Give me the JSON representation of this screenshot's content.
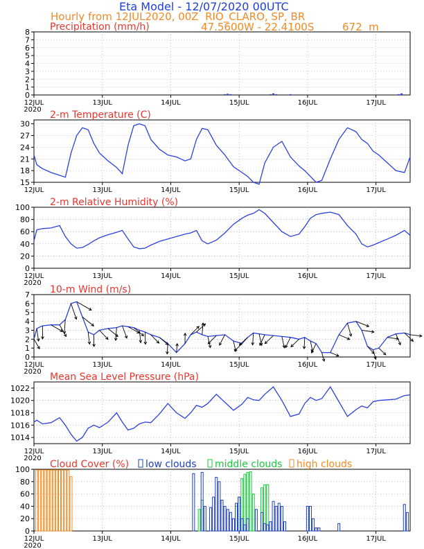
{
  "header": {
    "title": "Eta Model - 12/07/2020 00UTC",
    "subtitle": "Hourly from 12JUL2020, 00Z  RIO_CLARO, SP, BR",
    "coords": "47.5600W - 22.4100S",
    "elevation": "672  m"
  },
  "xaxis": {
    "ticks": [
      "12JUL",
      "13JUL",
      "14JUL",
      "15JUL",
      "16JUL",
      "17JUL"
    ],
    "year": "2020",
    "range_hours": [
      0,
      132
    ]
  },
  "legend": {
    "low": "low clouds",
    "middle": "middle clouds",
    "high": "high clouds"
  },
  "colors": {
    "line": "#2b3fe0",
    "title": "#e8362f",
    "low": "#1d3fc4",
    "middle": "#16c93a",
    "high": "#f08a24",
    "grid": "#999999"
  },
  "chart_data": [
    {
      "id": "precip",
      "type": "bar",
      "title": "Precipitation (mm/h)",
      "ylim": [
        0,
        8
      ],
      "yticks": [
        0,
        1,
        2,
        3,
        4,
        5,
        6,
        7,
        8
      ],
      "x": [
        67,
        68,
        69,
        83,
        84,
        85,
        90,
        128,
        129
      ],
      "values": [
        0.1,
        0.15,
        0.1,
        0.1,
        0.2,
        0.1,
        0.1,
        0.1,
        0.2
      ]
    },
    {
      "id": "temp",
      "type": "line",
      "title": "2-m Temperature (C)",
      "ylim": [
        15,
        31
      ],
      "yticks": [
        15,
        18,
        21,
        24,
        27,
        30
      ],
      "x": [
        0,
        1,
        3,
        6,
        9,
        11,
        13,
        15,
        17,
        19,
        21,
        23,
        26,
        29,
        31,
        33,
        35,
        37,
        39,
        41,
        44,
        47,
        50,
        53,
        55,
        57,
        59,
        61,
        64,
        67,
        70,
        73,
        75,
        77,
        79,
        81,
        84,
        87,
        90,
        93,
        95,
        97,
        99,
        101,
        104,
        107,
        110,
        113,
        115,
        117,
        119,
        121,
        124,
        127,
        130,
        132
      ],
      "values": [
        22,
        19.5,
        18.5,
        17.5,
        16.8,
        16.3,
        22.5,
        27,
        29,
        28.5,
        25,
        22.5,
        20.5,
        18.8,
        17.2,
        24.5,
        29.5,
        30,
        29.5,
        26,
        23.5,
        22,
        21.5,
        20.5,
        21,
        26,
        28.8,
        28.5,
        24.5,
        22,
        19,
        17.5,
        16.5,
        15,
        14.5,
        20,
        24,
        25.5,
        21.5,
        19.2,
        18,
        16.5,
        15,
        15.5,
        21,
        26,
        29,
        28,
        26,
        25,
        23,
        22,
        20,
        18,
        17.5,
        21.5
      ]
    },
    {
      "id": "rh",
      "type": "line",
      "title": "2-m Relative Humidity (%)",
      "ylim": [
        0,
        100
      ],
      "yticks": [
        0,
        20,
        40,
        60,
        80,
        100
      ],
      "x": [
        0,
        1,
        3,
        6,
        9,
        11,
        13,
        15,
        17,
        19,
        21,
        23,
        26,
        29,
        31,
        33,
        35,
        37,
        39,
        41,
        44,
        47,
        50,
        53,
        55,
        57,
        59,
        61,
        64,
        67,
        70,
        73,
        75,
        77,
        79,
        81,
        84,
        87,
        90,
        93,
        95,
        97,
        99,
        101,
        104,
        107,
        110,
        113,
        115,
        117,
        119,
        121,
        124,
        127,
        130,
        132
      ],
      "values": [
        45,
        63,
        65,
        66,
        70,
        52,
        40,
        33,
        34,
        39,
        45,
        50,
        55,
        59,
        62,
        48,
        35,
        32,
        33,
        38,
        44,
        48,
        52,
        56,
        58,
        62,
        45,
        40,
        46,
        58,
        72,
        82,
        87,
        90,
        96,
        90,
        75,
        60,
        52,
        56,
        68,
        82,
        88,
        90,
        92,
        88,
        70,
        56,
        40,
        35,
        38,
        42,
        48,
        54,
        62,
        54
      ]
    },
    {
      "id": "wind",
      "type": "line",
      "title": "10-m Wind (m/s)",
      "ylim": [
        0,
        7
      ],
      "yticks": [
        0,
        1,
        2,
        3,
        4,
        5,
        6,
        7
      ],
      "x": [
        0,
        1,
        3,
        6,
        9,
        11,
        13,
        15,
        17,
        19,
        21,
        23,
        26,
        29,
        31,
        33,
        35,
        37,
        39,
        41,
        44,
        47,
        50,
        53,
        55,
        57,
        59,
        61,
        64,
        67,
        70,
        73,
        75,
        77,
        79,
        81,
        84,
        87,
        90,
        93,
        95,
        97,
        99,
        101,
        104,
        107,
        110,
        113,
        115,
        117,
        119,
        121,
        124,
        127,
        130,
        132
      ],
      "values": [
        2,
        3.2,
        3.5,
        3.6,
        3.6,
        4.2,
        6,
        6.2,
        4.5,
        2.8,
        2.5,
        3,
        3.2,
        3.3,
        3.5,
        3.4,
        3.3,
        3,
        2.8,
        2.5,
        2.2,
        1.5,
        0.5,
        1.5,
        2.5,
        2.8,
        2.5,
        2.3,
        2.4,
        2.5,
        1.8,
        1.5,
        2.2,
        2.7,
        2.6,
        2.5,
        2.4,
        2.3,
        2.2,
        2,
        2.2,
        1.8,
        1.5,
        0.5,
        0.5,
        2.5,
        3.8,
        4,
        3,
        1.2,
        0.8,
        1,
        2.2,
        2.6,
        2.7,
        2.5
      ]
    },
    {
      "id": "mslp",
      "type": "line",
      "title": "Mean Sea Level Pressure (hPa)",
      "ylim": [
        1013,
        1023
      ],
      "yticks": [
        1014,
        1016,
        1018,
        1020,
        1022
      ],
      "x": [
        0,
        1,
        3,
        6,
        9,
        11,
        13,
        15,
        17,
        19,
        21,
        23,
        26,
        29,
        31,
        33,
        35,
        37,
        39,
        41,
        44,
        47,
        50,
        53,
        55,
        57,
        59,
        61,
        64,
        67,
        70,
        73,
        75,
        77,
        79,
        81,
        84,
        87,
        90,
        93,
        95,
        97,
        99,
        101,
        104,
        107,
        110,
        113,
        115,
        117,
        119,
        121,
        124,
        127,
        130,
        132
      ],
      "values": [
        1016.5,
        1016.8,
        1016.2,
        1016.4,
        1017.2,
        1016,
        1014.5,
        1013.4,
        1014,
        1015.5,
        1016,
        1015.6,
        1016.5,
        1018,
        1016.5,
        1015.2,
        1015.5,
        1016.2,
        1016.5,
        1016.4,
        1017.8,
        1019.5,
        1018,
        1017.1,
        1018,
        1019.2,
        1018.9,
        1019.5,
        1021,
        1019.7,
        1018.4,
        1019.4,
        1020.5,
        1020.1,
        1020,
        1021,
        1022.2,
        1020,
        1017.4,
        1017.8,
        1019.5,
        1020.5,
        1020,
        1020.3,
        1022.2,
        1019.8,
        1017.4,
        1018.5,
        1019.1,
        1018.8,
        1019.8,
        1020,
        1020.1,
        1020.2,
        1020.8,
        1020.9
      ]
    },
    {
      "id": "cloud",
      "type": "bar",
      "title": "Cloud Cover (%)",
      "ylim": [
        0,
        100
      ],
      "yticks": [
        0,
        20,
        40,
        60,
        80,
        100
      ],
      "series": [
        {
          "name": "high clouds",
          "color": "#f08a24",
          "x": [
            1,
            2,
            3,
            4,
            5,
            6,
            7,
            8,
            9,
            10,
            11,
            12,
            13
          ],
          "values": [
            99,
            99,
            99,
            99,
            99,
            99,
            99,
            99,
            99,
            99,
            99,
            99,
            88
          ]
        },
        {
          "name": "middle clouds",
          "color": "#16c93a",
          "x": [
            58,
            59,
            71,
            72,
            73,
            74,
            75,
            76,
            77,
            80,
            81,
            82
          ],
          "values": [
            35,
            50,
            40,
            55,
            85,
            92,
            95,
            96,
            60,
            70,
            75,
            75
          ]
        },
        {
          "name": "low clouds",
          "color": "#1d3fc4",
          "x": [
            56,
            59,
            60,
            62,
            63,
            64,
            65,
            66,
            67,
            68,
            69,
            70,
            71,
            72,
            73,
            74,
            75,
            78,
            80,
            81,
            82,
            83,
            84,
            85,
            86,
            87,
            88,
            96,
            97,
            98,
            99,
            100,
            107,
            130,
            131
          ],
          "values": [
            93,
            95,
            40,
            38,
            55,
            87,
            80,
            50,
            40,
            35,
            30,
            20,
            45,
            55,
            20,
            10,
            20,
            35,
            30,
            12,
            10,
            15,
            48,
            40,
            45,
            40,
            15,
            40,
            40,
            20,
            5,
            5,
            12,
            43,
            30
          ]
        }
      ]
    }
  ]
}
